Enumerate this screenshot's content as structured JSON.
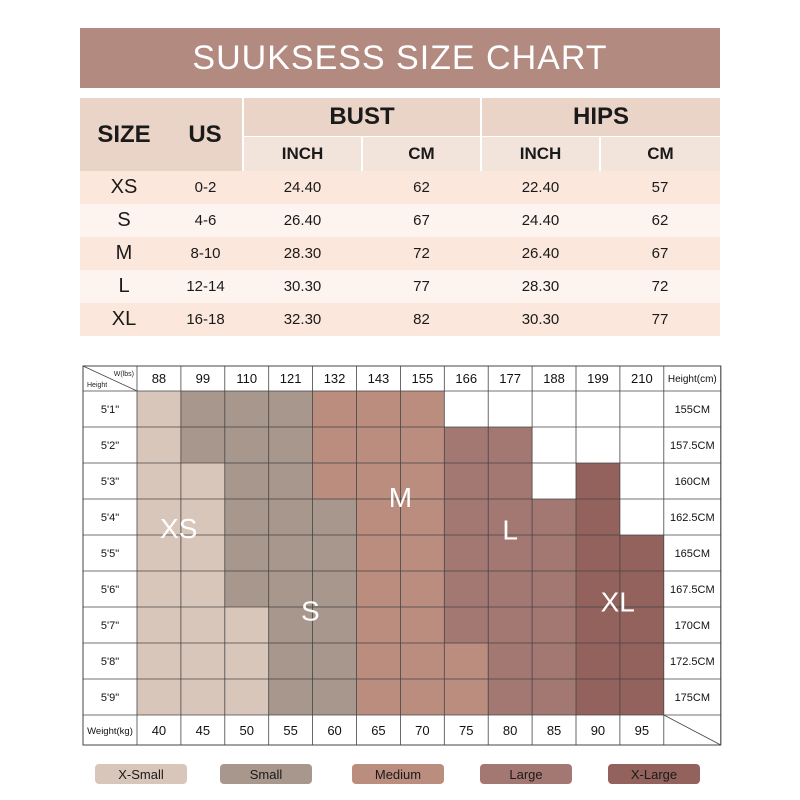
{
  "title": "SUUKSESS SIZE CHART",
  "size_table": {
    "headers": {
      "size": "SIZE",
      "us": "US",
      "bust": "BUST",
      "hips": "HIPS",
      "inch": "INCH",
      "cm": "CM"
    },
    "rows": [
      {
        "size": "XS",
        "us": "0-2",
        "bust_inch": "24.40",
        "bust_cm": "62",
        "hips_inch": "22.40",
        "hips_cm": "57"
      },
      {
        "size": "S",
        "us": "4-6",
        "bust_inch": "26.40",
        "bust_cm": "67",
        "hips_inch": "24.40",
        "hips_cm": "62"
      },
      {
        "size": "M",
        "us": "8-10",
        "bust_inch": "28.30",
        "bust_cm": "72",
        "hips_inch": "26.40",
        "hips_cm": "67"
      },
      {
        "size": "L",
        "us": "12-14",
        "bust_inch": "30.30",
        "bust_cm": "77",
        "hips_inch": "28.30",
        "hips_cm": "72"
      },
      {
        "size": "XL",
        "us": "16-18",
        "bust_inch": "32.30",
        "bust_cm": "82",
        "hips_inch": "30.30",
        "hips_cm": "77"
      }
    ]
  },
  "chart_data": {
    "type": "heatmap",
    "corner_top": "W(lbs)",
    "corner_bottom": "Height",
    "right_header": "Height(cm)",
    "bottom_label": "Weight(kg)",
    "weights_lbs": [
      "88",
      "99",
      "110",
      "121",
      "132",
      "143",
      "155",
      "166",
      "177",
      "188",
      "199",
      "210"
    ],
    "weights_kg": [
      "40",
      "45",
      "50",
      "55",
      "60",
      "65",
      "70",
      "75",
      "80",
      "85",
      "90",
      "95"
    ],
    "heights_ft": [
      "5'1\"",
      "5'2\"",
      "5'3\"",
      "5'4\"",
      "5'5\"",
      "5'6\"",
      "5'7\"",
      "5'8\"",
      "5'9\""
    ],
    "heights_cm": [
      "155CM",
      "157.5CM",
      "160CM",
      "162.5CM",
      "165CM",
      "167.5CM",
      "170CM",
      "172.5CM",
      "175CM"
    ],
    "sizes": [
      "XS",
      "S",
      "M",
      "L",
      "XL"
    ],
    "size_colors": {
      "XS": "#d9c6bb",
      "S": "#a8978c",
      "M": "#bb8d7f",
      "L": "#a47872",
      "XL": "#94625c"
    },
    "grid": [
      [
        "XS",
        "S",
        "S",
        "S",
        "M",
        "M",
        "M",
        "",
        "",
        "",
        "",
        ""
      ],
      [
        "XS",
        "S",
        "S",
        "S",
        "M",
        "M",
        "M",
        "L",
        "L",
        "",
        "",
        ""
      ],
      [
        "XS",
        "XS",
        "S",
        "S",
        "M",
        "M",
        "M",
        "L",
        "L",
        "",
        "XL",
        ""
      ],
      [
        "XS",
        "XS",
        "S",
        "S",
        "S",
        "M",
        "M",
        "L",
        "L",
        "L",
        "XL",
        ""
      ],
      [
        "XS",
        "XS",
        "S",
        "S",
        "S",
        "M",
        "M",
        "L",
        "L",
        "L",
        "XL",
        "XL"
      ],
      [
        "XS",
        "XS",
        "S",
        "S",
        "S",
        "M",
        "M",
        "L",
        "L",
        "L",
        "XL",
        "XL"
      ],
      [
        "XS",
        "XS",
        "XS",
        "S",
        "S",
        "M",
        "M",
        "L",
        "L",
        "L",
        "XL",
        "XL"
      ],
      [
        "XS",
        "XS",
        "XS",
        "S",
        "S",
        "M",
        "M",
        "M",
        "L",
        "L",
        "XL",
        "XL"
      ],
      [
        "XS",
        "XS",
        "XS",
        "S",
        "S",
        "M",
        "M",
        "M",
        "L",
        "L",
        "XL",
        "XL"
      ]
    ],
    "region_labels": [
      {
        "text": "XS",
        "row": 3.8,
        "col": 0.95
      },
      {
        "text": "S",
        "row": 6.1,
        "col": 3.95
      },
      {
        "text": "M",
        "row": 2.95,
        "col": 6.0
      },
      {
        "text": "L",
        "row": 3.85,
        "col": 8.5
      },
      {
        "text": "XL",
        "row": 5.85,
        "col": 10.95
      }
    ]
  },
  "legend": [
    {
      "label": "X-Small",
      "color": "#d9c6bb"
    },
    {
      "label": "Small",
      "color": "#a8978c"
    },
    {
      "label": "Medium",
      "color": "#bb8d7f"
    },
    {
      "label": "Large",
      "color": "#a47872"
    },
    {
      "label": "X-Large",
      "color": "#94625c"
    }
  ]
}
